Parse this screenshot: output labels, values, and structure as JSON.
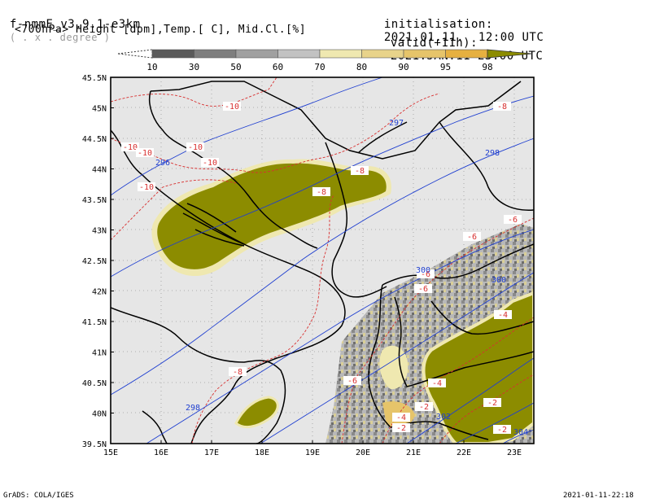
{
  "header": {
    "model": "f-nmmE_v3.9.1-e3km",
    "units": "( . x . degree )",
    "variables": "<700hPa> Height [dpm],Temp.[ C], Mid.Cl.[%]",
    "init_label": "initialisation:",
    "init_value": "2021.01.11.  12:00 UTC",
    "valid_label": "valid(+11h):",
    "valid_value": "2021.JAN.11 23:00 UTC"
  },
  "colorbar": {
    "labels": [
      "10",
      "30",
      "50",
      "60",
      "70",
      "80",
      "90",
      "95",
      "98"
    ],
    "colors": [
      "#5a5a5a",
      "#7e7e7e",
      "#a0a0a0",
      "#c2c2c2",
      "#efe8b0",
      "#e8d38a",
      "#e6c46a",
      "#e6b040",
      "#8c8c00"
    ]
  },
  "map": {
    "x_ticks": [
      "15E",
      "16E",
      "17E",
      "18E",
      "19E",
      "20E",
      "21E",
      "22E",
      "23E"
    ],
    "y_ticks": [
      "45.5N",
      "45N",
      "44.5N",
      "44N",
      "43.5N",
      "43N",
      "42.5N",
      "42N",
      "41.5N",
      "41N",
      "40.5N",
      "40N",
      "39.5N"
    ],
    "temp_labels": [
      "-10",
      "-10",
      "-10",
      "-10",
      "-10",
      "-10",
      "-8",
      "-8",
      "-8",
      "-8",
      "-6",
      "-6",
      "-6",
      "-6",
      "-6",
      "-4",
      "-4",
      "-4",
      "-2",
      "-2",
      "-2",
      "-2"
    ],
    "height_labels": [
      "297",
      "298",
      "296",
      "300",
      "298",
      "302",
      "304",
      "300"
    ],
    "colors": {
      "background": "#e6e6e6",
      "temp": "#d83030",
      "height": "#1f3fd0",
      "border": "#000000",
      "cloud_high": "#8c8c00"
    }
  },
  "footer": {
    "left": "GrADS: COLA/IGES",
    "right": "2021-01-11-22:18"
  }
}
